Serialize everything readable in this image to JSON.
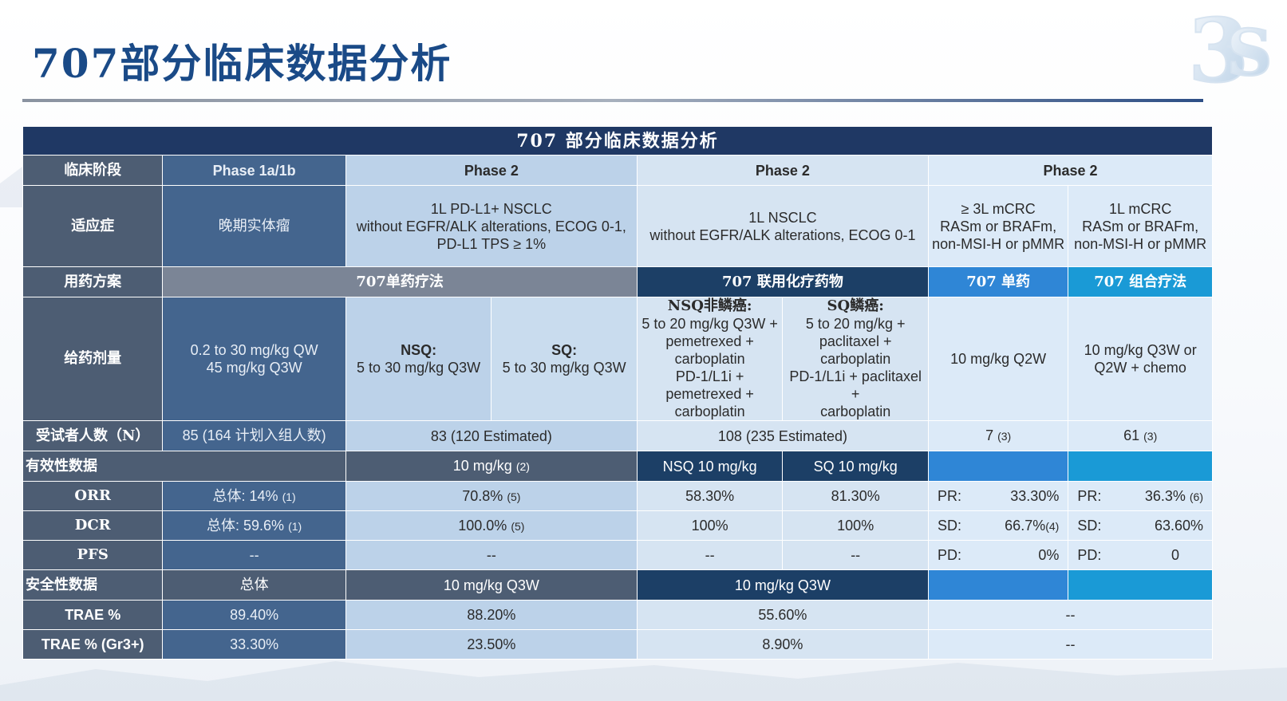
{
  "page_title": "707部分临床数据分析",
  "table": {
    "banner": "707  部分临床数据分析",
    "phase_row": {
      "label": "临床阶段",
      "phase1": "Phase 1a/1b",
      "phase2a": "Phase 2",
      "phase2b": "Phase 2",
      "phase2c": "Phase 2"
    },
    "indication_row": {
      "label": "适应症",
      "phase1": "晚期实体瘤",
      "phase2a": [
        "1L PD-L1+ NSCLC",
        "without EGFR/ALK alterations, ECOG 0-1,",
        "PD-L1 TPS ≥ 1%"
      ],
      "phase2b": [
        "1L NSCLC",
        "without EGFR/ALK alterations, ECOG 0-1"
      ],
      "crc1": [
        "≥ 3L mCRC",
        "RASm or BRAFm,",
        "non-MSI-H or pMMR"
      ],
      "crc2": [
        "1L mCRC",
        "RASm or BRAFm,",
        "non-MSI-H or pMMR"
      ]
    },
    "regimen_row": {
      "label": "用药方案",
      "mono": "707单药疗法",
      "combo_chemo": "707 联用化疗药物",
      "crc_mono": "707 单药",
      "crc_combo": "707 组合疗法"
    },
    "dose_row": {
      "label": "给药剂量",
      "phase1": [
        "0.2 to 30 mg/kg QW",
        "45 mg/kg Q3W"
      ],
      "nsq_title": "NSQ:",
      "nsq_dose": "5 to 30 mg/kg Q3W",
      "sq_title": "SQ:",
      "sq_dose": "5 to 30 mg/kg Q3W",
      "nsq_combo_title": "NSQ非鳞癌:",
      "nsq_combo": [
        "5 to 20 mg/kg Q3W +",
        "pemetrexed +",
        "carboplatin",
        "PD-1/L1i +",
        "pemetrexed +",
        "carboplatin"
      ],
      "sq_combo_title": "SQ鳞癌:",
      "sq_combo": [
        "5 to 20 mg/kg +",
        "paclitaxel +",
        "carboplatin",
        "PD-1/L1i + paclitaxel",
        "+",
        "carboplatin"
      ],
      "crc1": "10 mg/kg Q2W",
      "crc2": [
        "10 mg/kg Q3W or",
        "Q2W + chemo"
      ]
    },
    "subjects_row": {
      "label": "受试者人数（N）",
      "phase1_main": "85 (164 ",
      "phase1_cn": "计划入组人数",
      "phase1_end": ")",
      "phase2a": "83 (120 Estimated)",
      "phase2b": "108 (235 Estimated)",
      "crc1": "7",
      "crc1_ref": "(3)",
      "crc2": "61",
      "crc2_ref": "(3)"
    },
    "efficacy_header": {
      "label": "有效性数据",
      "phase2a": "10 mg/kg",
      "phase2a_ref": "(2)",
      "nsq": "NSQ 10 mg/kg",
      "sq": "SQ 10 mg/kg"
    },
    "orr": {
      "label": "ORR",
      "phase1_cn": "总体",
      "phase1": ": 14%",
      "phase1_ref": "(1)",
      "phase2a": "70.8%",
      "phase2a_ref": "(5)",
      "nsq": "58.30%",
      "sq": "81.30%",
      "crc1_k": "PR:",
      "crc1_v": "33.30%",
      "crc2_k": "PR:",
      "crc2_v": "36.3%",
      "crc2_ref": "(6)"
    },
    "dcr": {
      "label": "DCR",
      "phase1_cn": "总体",
      "phase1": ": 59.6%",
      "phase1_ref": "(1)",
      "phase2a": "100.0%",
      "phase2a_ref": "(5)",
      "nsq": "100%",
      "sq": "100%",
      "crc1_k": "SD:",
      "crc1_v": "66.7%",
      "crc1_ref": "(4)",
      "crc2_k": "SD:",
      "crc2_v": "63.60%"
    },
    "pfs": {
      "label": "PFS",
      "phase1": "--",
      "phase2a": "--",
      "nsq": "--",
      "sq": "--",
      "crc1_k": "PD:",
      "crc1_v": "0%",
      "crc2_k": "PD:",
      "crc2_v": "0"
    },
    "safety_header": {
      "label": "安全性数据",
      "phase1": "总体",
      "phase2a": "10 mg/kg Q3W",
      "phase2b": "10 mg/kg Q3W"
    },
    "trae": {
      "label": "TRAE %",
      "phase1": "89.40%",
      "phase2a": "88.20%",
      "phase2b": "55.60%",
      "crc": "--"
    },
    "trae3": {
      "label": "TRAE % (Gr3+)",
      "phase1": "33.30%",
      "phase2a": "23.50%",
      "phase2b": "8.90%",
      "crc": "--"
    }
  },
  "colors": {
    "title": "#1a4a87",
    "banner": "#1f3864",
    "label_col": "#4d5d73",
    "phase1_col": "#44658e",
    "combo_navy": "#1c3f66",
    "crc_blue": "#2f86d6",
    "crc_cyan": "#1a9ad6"
  }
}
